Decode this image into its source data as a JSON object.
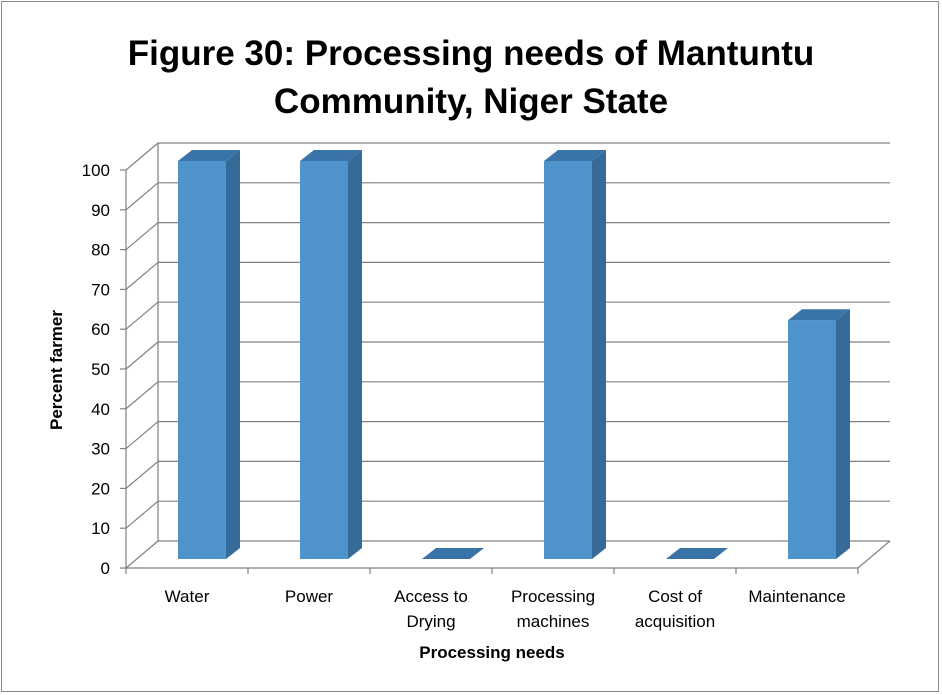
{
  "chart_data": {
    "type": "bar",
    "title": [
      "Figure 30: Processing needs of Mantuntu",
      "Community, Niger State"
    ],
    "xlabel": "Processing needs",
    "ylabel": "Percent farmer",
    "categories": [
      [
        "Water"
      ],
      [
        "Power"
      ],
      [
        "Access to",
        "Drying"
      ],
      [
        "Processing",
        "machines"
      ],
      [
        "Cost of",
        "acquisition"
      ],
      [
        "Maintenance"
      ]
    ],
    "values": [
      100,
      100,
      0,
      100,
      0,
      60
    ],
    "ylim": [
      0,
      100
    ],
    "yticks": [
      0,
      10,
      20,
      30,
      40,
      50,
      60,
      70,
      80,
      90,
      100
    ],
    "grid": true,
    "colors": {
      "bar_front": "#4F93CC",
      "bar_side": "#356A99",
      "bar_top": "#3A73A8",
      "grid": "#808080",
      "axis": "#808080"
    }
  }
}
